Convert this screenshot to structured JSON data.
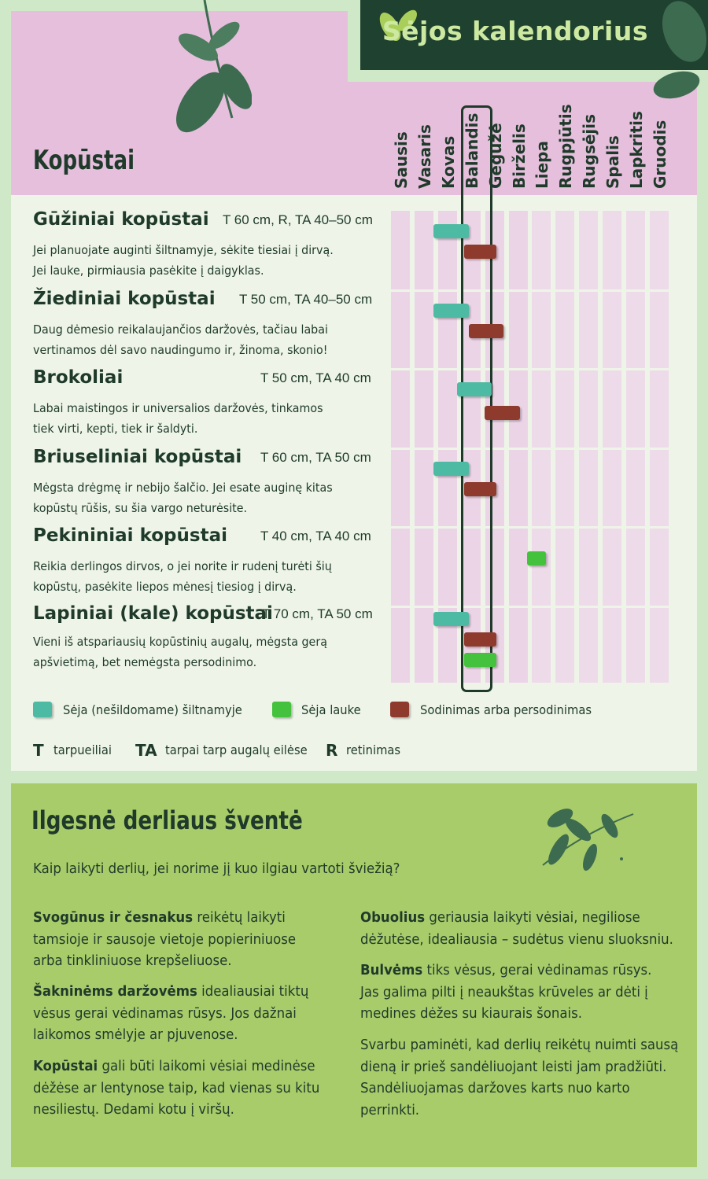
{
  "banner": {
    "title": "Sėjos kalendorius"
  },
  "section": {
    "title": "Kopūstai"
  },
  "months": [
    "Sausis",
    "Vasaris",
    "Kovas",
    "Balandis",
    "Gegužė",
    "Birželis",
    "Liepa",
    "Rugpjūtis",
    "Rugsėjis",
    "Spalis",
    "Lapkritis",
    "Gruodis"
  ],
  "highlighted_month": "Balandis",
  "vegetables": [
    {
      "name": "Gūžiniai kopūstai",
      "spacing": "T 60 cm, R, TA 40–50 cm",
      "desc": [
        "Jei planuojate auginti šiltnamyje, sėkite tiesiai į dirvą.",
        "Jei lauke, pirmiausia pasėkite į daigyklas."
      ],
      "bars": [
        {
          "type": "greenhouse_sowing",
          "from": 3.0,
          "to": 4.5
        },
        {
          "type": "planting",
          "from": 4.3,
          "to": 5.7
        }
      ]
    },
    {
      "name": "Žiediniai kopūstai",
      "spacing": "T 50 cm, TA 40–50 cm",
      "desc": [
        "Daug dėmesio reikalaujančios daržovės, tačiau labai",
        "vertinamos dėl savo naudingumo ir, žinoma, skonio!"
      ],
      "bars": [
        {
          "type": "greenhouse_sowing",
          "from": 3.0,
          "to": 4.5
        },
        {
          "type": "planting",
          "from": 4.5,
          "to": 6.0
        }
      ]
    },
    {
      "name": "Brokoliai",
      "spacing": "T 50 cm, TA 40 cm",
      "desc": [
        "Labai maistingos ir universalios daržovės, tinkamos",
        "tiek virti, kepti, tiek ir šaldyti."
      ],
      "bars": [
        {
          "type": "greenhouse_sowing",
          "from": 4.0,
          "to": 5.5
        },
        {
          "type": "planting",
          "from": 5.2,
          "to": 6.7
        }
      ]
    },
    {
      "name": "Briuseliniai kopūstai",
      "spacing": "T 60 cm, TA 50 cm",
      "desc": [
        "Mėgsta drėgmę ir nebijo šalčio. Jei esate auginę kitas",
        "kopūstų rūšis, su šia vargo neturėsite."
      ],
      "bars": [
        {
          "type": "greenhouse_sowing",
          "from": 3.0,
          "to": 4.5
        },
        {
          "type": "planting",
          "from": 4.3,
          "to": 5.7
        }
      ]
    },
    {
      "name": "Pekininiai kopūstai",
      "spacing": "T 40 cm, TA 40 cm",
      "desc": [
        "Reikia derlingos dirvos, o jei norite ir rudenį turėti šių",
        "kopūstų, pasėkite liepos mėnesį tiesiog į dirvą."
      ],
      "bars": [
        {
          "type": "outdoor_sowing",
          "from": 7.0,
          "to": 7.8
        }
      ]
    },
    {
      "name": "Lapiniai (kale) kopūstai",
      "spacing": "T 70 cm, TA 50 cm",
      "desc": [
        "Vieni iš atspariausių kopūstinių augalų, mėgsta gerą",
        "apšvietimą, bet nemėgsta persodinimo."
      ],
      "bars": [
        {
          "type": "greenhouse_sowing",
          "from": 3.0,
          "to": 4.5
        },
        {
          "type": "planting",
          "from": 4.3,
          "to": 5.7
        },
        {
          "type": "outdoor_sowing",
          "from": 4.3,
          "to": 5.7
        }
      ]
    }
  ],
  "legend": [
    {
      "key": "greenhouse_sowing",
      "label": "Sėja (nešildomame) šiltnamyje",
      "color": "#4dbba3"
    },
    {
      "key": "outdoor_sowing",
      "label": "Sėja lauke",
      "color": "#45c23d"
    },
    {
      "key": "planting",
      "label": "Sodinimas arba persodinimas",
      "color": "#8e3b2d"
    }
  ],
  "abbreviations": [
    {
      "abbr": "T",
      "meaning": "tarpueiliai"
    },
    {
      "abbr": "TA",
      "meaning": "tarpai tarp augalų eilėse"
    },
    {
      "abbr": "R",
      "meaning": "retinimas"
    }
  ],
  "storage": {
    "title": "Ilgesnė derliaus šventė",
    "subtitle": "Kaip laikyti derlių, jei norime jį kuo ilgiau vartoti šviežią?",
    "left": [
      {
        "bold": "Svogūnus ir česnakus",
        "lines": [
          " reikėtų laikyti",
          "tamsioje ir sausoje vietoje popieriniuose",
          "arba tinkliniuose  krepšeliuose."
        ]
      },
      {
        "bold": "Šakninėms daržovėms",
        "lines": [
          " idealiausiai tiktų",
          "vėsus gerai vėdinamas rūsys. Jos dažnai",
          "laikomos smėlyje ar pjuvenose."
        ]
      },
      {
        "bold": "Kopūstai",
        "lines": [
          " gali būti laikomi vėsiai medinėse",
          "dėžėse ar lentynose taip, kad vienas su kitu",
          "nesiliestų. Dedami kotu į viršų."
        ]
      }
    ],
    "right": [
      {
        "bold": "Obuolius",
        "lines": [
          " geriausia laikyti vėsiai, negiliose",
          "dėžutėse, idealiausia – sudėtus vienu sluoksniu."
        ]
      },
      {
        "bold": "Bulvėms",
        "lines": [
          " tiks vėsus, gerai vėdinamas rūsys.",
          "Jas galima pilti į neaukštas krūveles ar dėti į",
          "medines dėžes su kiaurais šonais."
        ]
      },
      {
        "bold": "",
        "lines": [
          "Svarbu paminėti, kad derlių reikėtų nuimti sausą",
          "dieną ir prieš sandėliuojant leisti jam pradžiūti.",
          "Sandėliuojamas daržoves karts nuo karto",
          "perrinkti."
        ]
      }
    ]
  }
}
